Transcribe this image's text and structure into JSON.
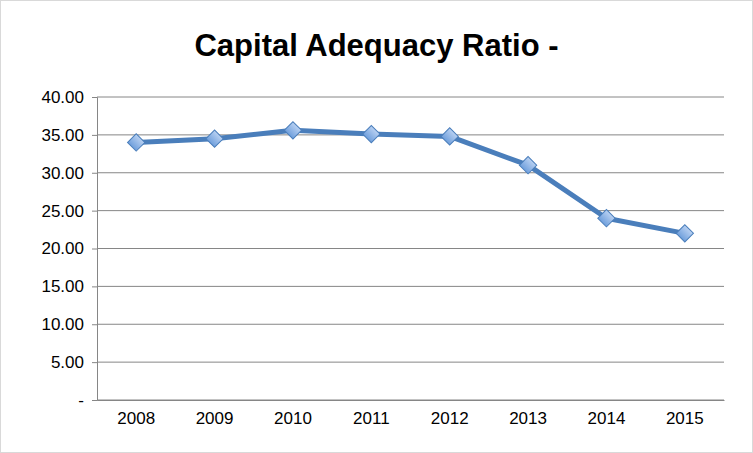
{
  "chart_data": {
    "type": "line",
    "title": "Capital Adequacy Ratio -",
    "categories": [
      "2008",
      "2009",
      "2010",
      "2011",
      "2012",
      "2013",
      "2014",
      "2015"
    ],
    "values": [
      34.0,
      34.5,
      35.6,
      35.1,
      34.8,
      31.0,
      24.0,
      22.0
    ],
    "color": "#4a7ebb",
    "marker": "diamond",
    "ylim": [
      0,
      40
    ],
    "yticks": [
      {
        "value": 0,
        "label": "-"
      },
      {
        "value": 5,
        "label": "5.00"
      },
      {
        "value": 10,
        "label": "10.00"
      },
      {
        "value": 15,
        "label": "15.00"
      },
      {
        "value": 20,
        "label": "20.00"
      },
      {
        "value": 25,
        "label": "25.00"
      },
      {
        "value": 30,
        "label": "30.00"
      },
      {
        "value": 35,
        "label": "35.00"
      },
      {
        "value": 40,
        "label": "40.00"
      }
    ],
    "grid": true
  }
}
